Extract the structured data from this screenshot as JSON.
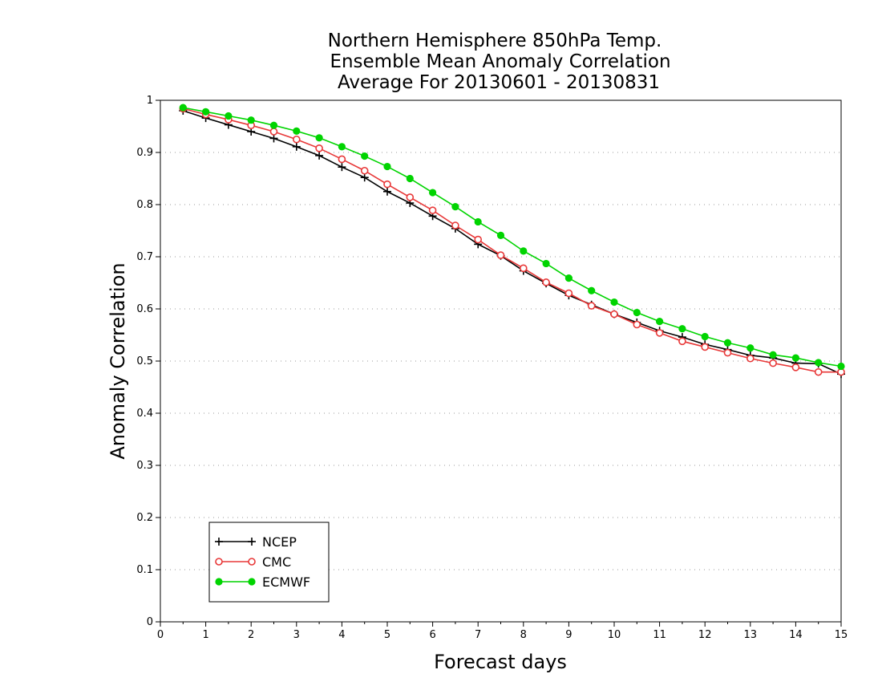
{
  "chart_data": {
    "type": "line",
    "title_lines": [
      "Northern Hemisphere 850hPa Temp.",
      "Ensemble Mean Anomaly Correlation",
      "Average For 20130601 - 20130831"
    ],
    "xlabel": "Forecast days",
    "ylabel": "Anomaly Correlation",
    "xlim": [
      0,
      15
    ],
    "ylim": [
      0,
      1
    ],
    "xticks": [
      "0",
      "1",
      "2",
      "3",
      "4",
      "5",
      "6",
      "7",
      "8",
      "9",
      "10",
      "11",
      "12",
      "13",
      "14",
      "15"
    ],
    "yticks": [
      "0",
      "0.1",
      "0.2",
      "0.3",
      "0.4",
      "0.5",
      "0.6",
      "0.7",
      "0.8",
      "0.9",
      "1"
    ],
    "grid": "horizontal dotted",
    "legend_position": "bottom-left",
    "x": [
      0.5,
      1,
      1.5,
      2,
      2.5,
      3,
      3.5,
      4,
      4.5,
      5,
      5.5,
      6,
      6.5,
      7,
      7.5,
      8,
      8.5,
      9,
      9.5,
      10,
      10.5,
      11,
      11.5,
      12,
      12.5,
      13,
      13.5,
      14,
      14.5,
      15
    ],
    "series": [
      {
        "name": "NCEP",
        "color": "#000000",
        "marker": "plus",
        "values": [
          0.98,
          0.966,
          0.953,
          0.94,
          0.927,
          0.911,
          0.894,
          0.872,
          0.852,
          0.825,
          0.803,
          0.778,
          0.754,
          0.724,
          0.702,
          0.673,
          0.649,
          0.626,
          0.608,
          0.59,
          0.574,
          0.558,
          0.546,
          0.532,
          0.522,
          0.511,
          0.506,
          0.496,
          0.495,
          0.475
        ]
      },
      {
        "name": "CMC",
        "color": "#e83838",
        "marker": "open-circle",
        "values": [
          0.984,
          0.973,
          0.963,
          0.952,
          0.94,
          0.925,
          0.908,
          0.887,
          0.865,
          0.839,
          0.814,
          0.789,
          0.76,
          0.733,
          0.703,
          0.678,
          0.651,
          0.63,
          0.606,
          0.59,
          0.57,
          0.554,
          0.538,
          0.527,
          0.516,
          0.505,
          0.496,
          0.488,
          0.479,
          0.479
        ]
      },
      {
        "name": "ECMWF",
        "color": "#00d400",
        "marker": "filled-circle",
        "values": [
          0.986,
          0.978,
          0.97,
          0.962,
          0.952,
          0.941,
          0.928,
          0.911,
          0.893,
          0.873,
          0.85,
          0.823,
          0.796,
          0.767,
          0.741,
          0.711,
          0.687,
          0.659,
          0.635,
          0.613,
          0.593,
          0.576,
          0.562,
          0.547,
          0.535,
          0.525,
          0.512,
          0.506,
          0.497,
          0.49
        ]
      }
    ]
  }
}
